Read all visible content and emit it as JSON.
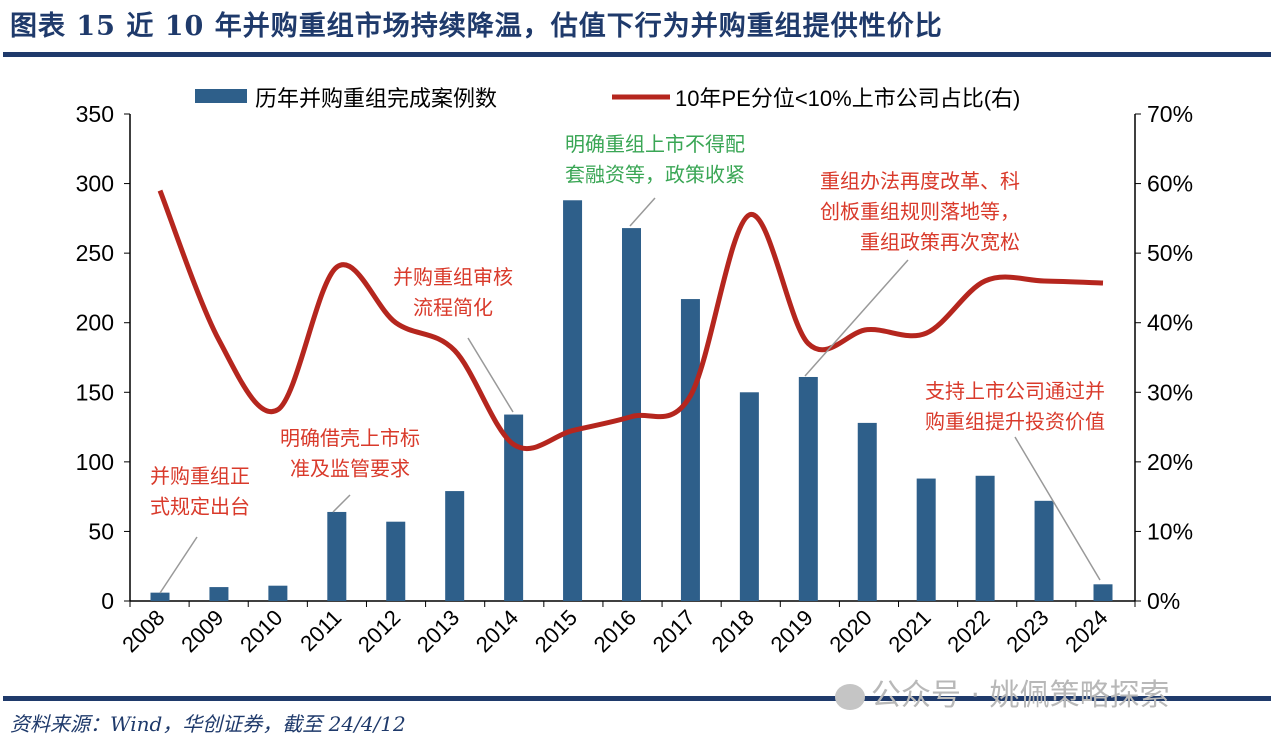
{
  "header": {
    "title": "图表 15   近 10 年并购重组市场持续降温，估值下行为并购重组提供性价比"
  },
  "footer": {
    "source": "资料来源：Wind，华创证券，截至 24/4/12",
    "watermark": "公众号 · 姚佩策略探索"
  },
  "chart_data": {
    "type": "bar+line",
    "categories": [
      "2008",
      "2009",
      "2010",
      "2011",
      "2012",
      "2013",
      "2014",
      "2015",
      "2016",
      "2017",
      "2018",
      "2019",
      "2020",
      "2021",
      "2022",
      "2023",
      "2024"
    ],
    "series": [
      {
        "name": "历年并购重组完成案例数",
        "type": "bar",
        "axis": "left",
        "color": "#2e5f8a",
        "values": [
          6,
          10,
          11,
          64,
          57,
          79,
          134,
          288,
          268,
          217,
          150,
          161,
          128,
          88,
          90,
          72,
          12
        ]
      },
      {
        "name": "10年PE分位<10%上市公司占比(右)",
        "type": "line",
        "axis": "right",
        "color": "#b5261e",
        "values": [
          59,
          37.5,
          27.5,
          48,
          40,
          36,
          22.5,
          24.5,
          26.5,
          29.5,
          55.5,
          37,
          39,
          38.5,
          46,
          46,
          45.7
        ]
      }
    ],
    "left_axis": {
      "min": 0,
      "max": 350,
      "ticks": [
        "0",
        "50",
        "100",
        "150",
        "200",
        "250",
        "300",
        "350"
      ]
    },
    "right_axis": {
      "min": 0,
      "max": 70,
      "ticks": [
        "0%",
        "10%",
        "20%",
        "30%",
        "40%",
        "50%",
        "60%",
        "70%"
      ]
    },
    "legend_position": "top",
    "annotations": [
      {
        "year": "2008",
        "color": "#d93a2b",
        "lines": [
          "并购重组正",
          "式规定出台"
        ]
      },
      {
        "year": "2011",
        "color": "#d93a2b",
        "lines": [
          "明确借壳上市标",
          "准及监管要求"
        ]
      },
      {
        "year": "2014",
        "color": "#d93a2b",
        "lines": [
          "并购重组审核",
          "流程简化"
        ]
      },
      {
        "year": "2016",
        "color": "#3aa655",
        "lines": [
          "明确重组上市不得配",
          "套融资等，政策收紧"
        ]
      },
      {
        "year": "2019",
        "color": "#d93a2b",
        "lines": [
          "重组办法再度改革、科",
          "创板重组规则落地等，",
          "重组政策再次宽松"
        ]
      },
      {
        "year": "2024",
        "color": "#d93a2b",
        "lines": [
          "支持上市公司通过并",
          "购重组提升投资价值"
        ]
      }
    ]
  }
}
